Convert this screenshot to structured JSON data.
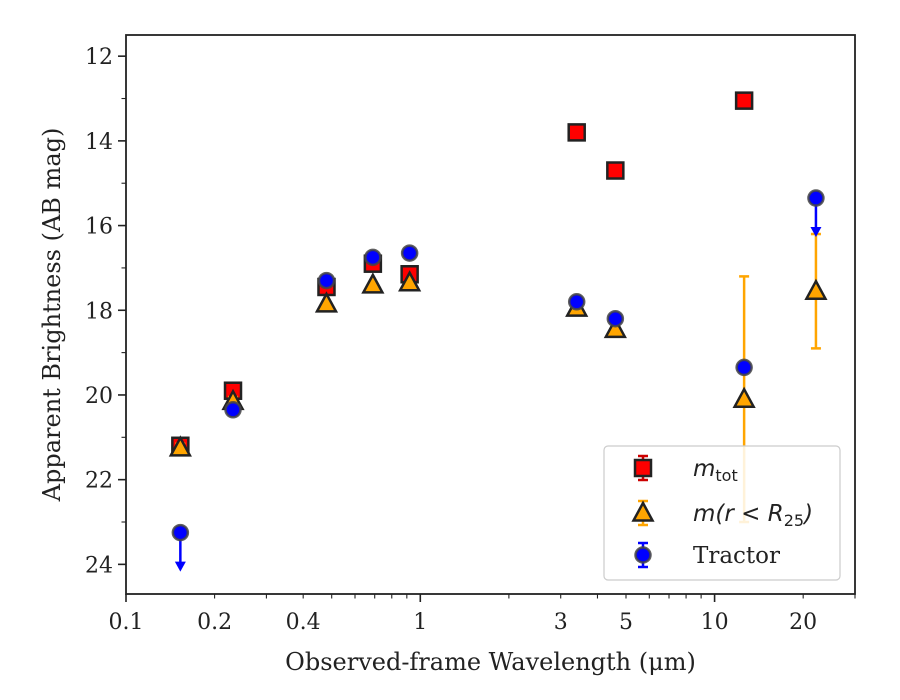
{
  "chart_data": {
    "type": "scatter",
    "xlabel": "Observed-frame Wavelength (μm)",
    "ylabel": "Apparent Brightness (AB mag)",
    "x_scale": "log",
    "xlim": [
      0.1,
      30
    ],
    "ylim": [
      24.7,
      11.5
    ],
    "y_inverted": true,
    "x_ticks": [
      0.1,
      0.2,
      0.4,
      1,
      3,
      5,
      10,
      20
    ],
    "x_tick_labels": [
      "0.1",
      "0.2",
      "0.4",
      "1",
      "3",
      "5",
      "10",
      "20"
    ],
    "y_ticks": [
      12,
      14,
      16,
      18,
      20,
      22,
      24
    ],
    "y_tick_labels": [
      "12",
      "14",
      "16",
      "18",
      "20",
      "22",
      "24"
    ],
    "grid": false,
    "legend_position": "lower-right",
    "series": [
      {
        "name": "m_tot",
        "legend": {
          "main": "m",
          "sub": "tot"
        },
        "marker": "square",
        "color": "#ff0000",
        "edge_color": "#222222",
        "points": [
          {
            "x": 0.153,
            "y": 21.2,
            "err": 0.1
          },
          {
            "x": 0.231,
            "y": 19.9,
            "err": 0.1
          },
          {
            "x": 0.48,
            "y": 17.45,
            "err": 0.1
          },
          {
            "x": 0.69,
            "y": 16.9,
            "err": 0.1
          },
          {
            "x": 0.92,
            "y": 17.15,
            "err": 0.1
          },
          {
            "x": 3.4,
            "y": 13.8,
            "err": 0.05
          },
          {
            "x": 4.6,
            "y": 14.7,
            "err": 0.05
          },
          {
            "x": 12.6,
            "y": 13.05,
            "err": 0.05
          }
        ]
      },
      {
        "name": "m(r < R_25)",
        "legend": {
          "main": "m(r < R",
          "sub": "25",
          "close": ")"
        },
        "marker": "triangle",
        "color": "#ffa500",
        "edge_color": "#222222",
        "points": [
          {
            "x": 0.153,
            "y": 21.25,
            "err": 0.1
          },
          {
            "x": 0.231,
            "y": 20.15,
            "err": 0.1
          },
          {
            "x": 0.48,
            "y": 17.85,
            "err": 0.05
          },
          {
            "x": 0.69,
            "y": 17.4,
            "err": 0.05
          },
          {
            "x": 0.92,
            "y": 17.35,
            "err": 0.05
          },
          {
            "x": 3.4,
            "y": 17.95,
            "err": 0.05
          },
          {
            "x": 4.6,
            "y": 18.45,
            "err": 0.05
          },
          {
            "x": 12.6,
            "y": 20.1,
            "err_low": 2.9,
            "err_high": 2.9
          },
          {
            "x": 22.1,
            "y": 17.55,
            "err_low": 1.35,
            "err_high": 1.35
          }
        ]
      },
      {
        "name": "Tractor",
        "legend": {
          "main": "Tractor"
        },
        "marker": "circle",
        "color": "#0000ff",
        "edge_color": "#444444",
        "points": [
          {
            "x": 0.153,
            "y": 23.25,
            "upper_limit": true
          },
          {
            "x": 0.231,
            "y": 20.35,
            "err": 0.05
          },
          {
            "x": 0.48,
            "y": 17.3,
            "err": 0.05
          },
          {
            "x": 0.69,
            "y": 16.75,
            "err": 0.05
          },
          {
            "x": 0.92,
            "y": 16.65,
            "err": 0.05
          },
          {
            "x": 3.4,
            "y": 17.8,
            "err": 0.05
          },
          {
            "x": 4.6,
            "y": 18.2,
            "err": 0.05
          },
          {
            "x": 12.6,
            "y": 19.35,
            "err": 0.05
          },
          {
            "x": 22.1,
            "y": 15.35,
            "upper_limit": true
          }
        ]
      }
    ]
  }
}
